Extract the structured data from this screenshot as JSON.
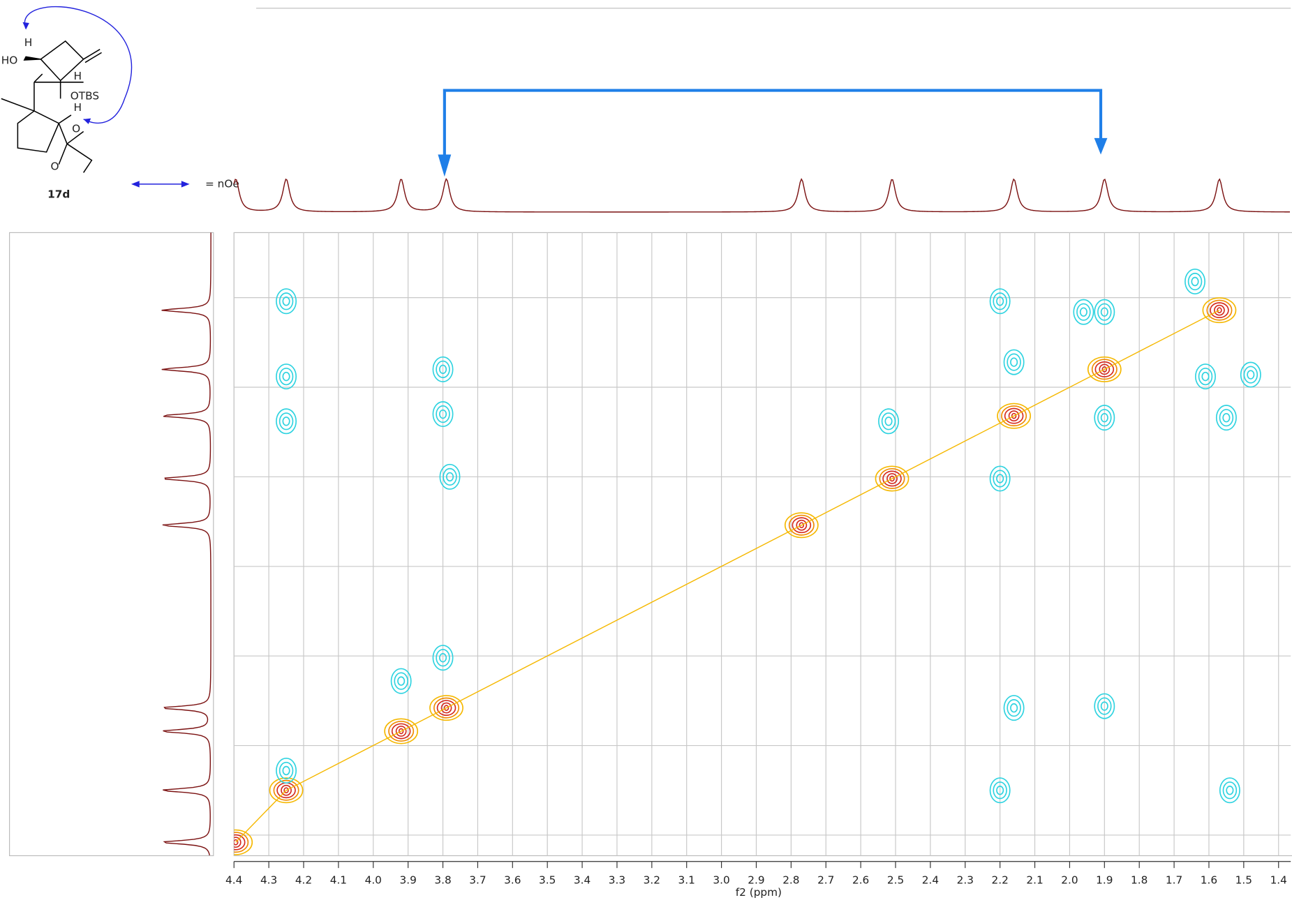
{
  "chart_data": {
    "type": "contour",
    "x_label": "f2 (ppm)",
    "xlim": [
      4.4,
      1.365
    ],
    "ylim": [
      1.137,
      4.615
    ],
    "xticks": [
      4.4,
      4.3,
      4.2,
      4.1,
      {
        "value": 4.0,
        "label": "4.0"
      },
      3.9,
      3.8,
      3.7,
      3.6,
      3.5,
      3.4,
      3.3,
      3.2,
      3.1,
      {
        "value": 3.0,
        "label": "3.0"
      },
      2.9,
      2.8,
      2.7,
      2.6,
      2.5,
      2.4,
      2.3,
      2.2,
      2.1,
      {
        "value": 2.0,
        "label": "2.0"
      },
      1.9,
      1.8,
      1.7,
      1.6,
      1.5,
      1.4
    ],
    "yticks": [
      1.5,
      2,
      2.5,
      3,
      3.5,
      4,
      4.5
    ],
    "grid": true,
    "series": [
      {
        "color": "#d42a1e",
        "x": [
          4.25,
          3.92,
          3.79,
          2.77,
          2.51,
          2.16,
          1.9,
          1.57,
          4.395
        ],
        "y": [
          4.25,
          3.92,
          3.79,
          2.77,
          2.51,
          2.16,
          1.9,
          1.57,
          4.54
        ]
      },
      {
        "color": "#2ed3e0",
        "x": [
          4.25,
          4.25,
          4.25,
          3.8,
          3.8,
          3.78,
          2.52,
          2.2,
          2.2,
          2.16,
          1.96,
          1.9,
          1.9,
          1.61,
          1.55,
          2.16,
          1.9,
          2.2,
          1.54,
          3.92,
          3.8,
          4.25,
          1.48,
          1.64
        ],
        "y": [
          1.52,
          1.94,
          2.19,
          1.9,
          2.15,
          2.5,
          2.19,
          1.52,
          2.51,
          1.86,
          1.58,
          1.58,
          2.17,
          1.94,
          2.17,
          3.79,
          3.78,
          4.25,
          4.25,
          3.64,
          3.51,
          4.14,
          1.93,
          1.41
        ]
      }
    ],
    "compound": "17d",
    "legend_text": "= nOe",
    "atoms": [
      "H",
      "HO",
      "H",
      "OTBS",
      "H",
      "O",
      "O"
    ]
  }
}
